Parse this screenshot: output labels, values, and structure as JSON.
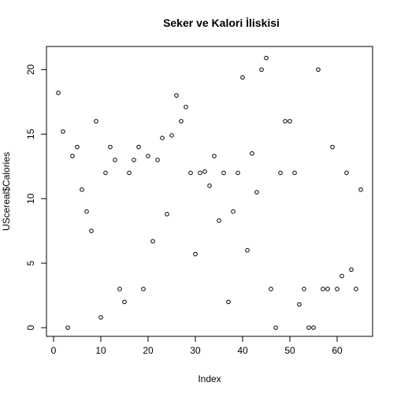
{
  "chart_data": {
    "type": "scatter",
    "title": "Seker ve Kalori İliskisi",
    "xlabel": "Index",
    "ylabel": "UScereal$Calories",
    "xlim": [
      0,
      65
    ],
    "ylim": [
      0,
      21
    ],
    "x_ticks": [
      "0",
      "10",
      "20",
      "30",
      "40",
      "50",
      "60"
    ],
    "y_ticks": [
      "0",
      "5",
      "10",
      "15",
      "20"
    ],
    "grid": false,
    "legend": "none",
    "point_color": "#000000",
    "points": [
      {
        "x": 1,
        "y": 18.2
      },
      {
        "x": 2,
        "y": 15.2
      },
      {
        "x": 3,
        "y": 0
      },
      {
        "x": 4,
        "y": 13.3
      },
      {
        "x": 5,
        "y": 14
      },
      {
        "x": 6,
        "y": 10.7
      },
      {
        "x": 7,
        "y": 9
      },
      {
        "x": 8,
        "y": 7.5
      },
      {
        "x": 9,
        "y": 16
      },
      {
        "x": 10,
        "y": 0.8
      },
      {
        "x": 11,
        "y": 12
      },
      {
        "x": 12,
        "y": 14
      },
      {
        "x": 13,
        "y": 13
      },
      {
        "x": 14,
        "y": 3
      },
      {
        "x": 15,
        "y": 2
      },
      {
        "x": 16,
        "y": 12
      },
      {
        "x": 17,
        "y": 13
      },
      {
        "x": 18,
        "y": 14
      },
      {
        "x": 19,
        "y": 3
      },
      {
        "x": 20,
        "y": 13.3
      },
      {
        "x": 21,
        "y": 6.7
      },
      {
        "x": 22,
        "y": 13
      },
      {
        "x": 23,
        "y": 14.7
      },
      {
        "x": 24,
        "y": 8.8
      },
      {
        "x": 25,
        "y": 14.9
      },
      {
        "x": 26,
        "y": 18
      },
      {
        "x": 27,
        "y": 16
      },
      {
        "x": 28,
        "y": 17.1
      },
      {
        "x": 29,
        "y": 12
      },
      {
        "x": 30,
        "y": 5.7
      },
      {
        "x": 31,
        "y": 12
      },
      {
        "x": 32,
        "y": 12.1
      },
      {
        "x": 33,
        "y": 11
      },
      {
        "x": 34,
        "y": 13.3
      },
      {
        "x": 35,
        "y": 8.3
      },
      {
        "x": 36,
        "y": 12
      },
      {
        "x": 37,
        "y": 2
      },
      {
        "x": 38,
        "y": 9
      },
      {
        "x": 39,
        "y": 12
      },
      {
        "x": 40,
        "y": 19.4
      },
      {
        "x": 41,
        "y": 6
      },
      {
        "x": 42,
        "y": 13.5
      },
      {
        "x": 43,
        "y": 10.5
      },
      {
        "x": 44,
        "y": 20
      },
      {
        "x": 45,
        "y": 20.9
      },
      {
        "x": 46,
        "y": 3
      },
      {
        "x": 47,
        "y": 0
      },
      {
        "x": 48,
        "y": 12
      },
      {
        "x": 49,
        "y": 16
      },
      {
        "x": 50,
        "y": 16
      },
      {
        "x": 51,
        "y": 12
      },
      {
        "x": 52,
        "y": 1.8
      },
      {
        "x": 53,
        "y": 3
      },
      {
        "x": 54,
        "y": 0
      },
      {
        "x": 55,
        "y": 0
      },
      {
        "x": 56,
        "y": 20
      },
      {
        "x": 57,
        "y": 3
      },
      {
        "x": 58,
        "y": 3
      },
      {
        "x": 59,
        "y": 14
      },
      {
        "x": 60,
        "y": 3
      },
      {
        "x": 61,
        "y": 4
      },
      {
        "x": 62,
        "y": 12
      },
      {
        "x": 63,
        "y": 4.5
      },
      {
        "x": 64,
        "y": 3
      },
      {
        "x": 65,
        "y": 10.7
      }
    ]
  }
}
